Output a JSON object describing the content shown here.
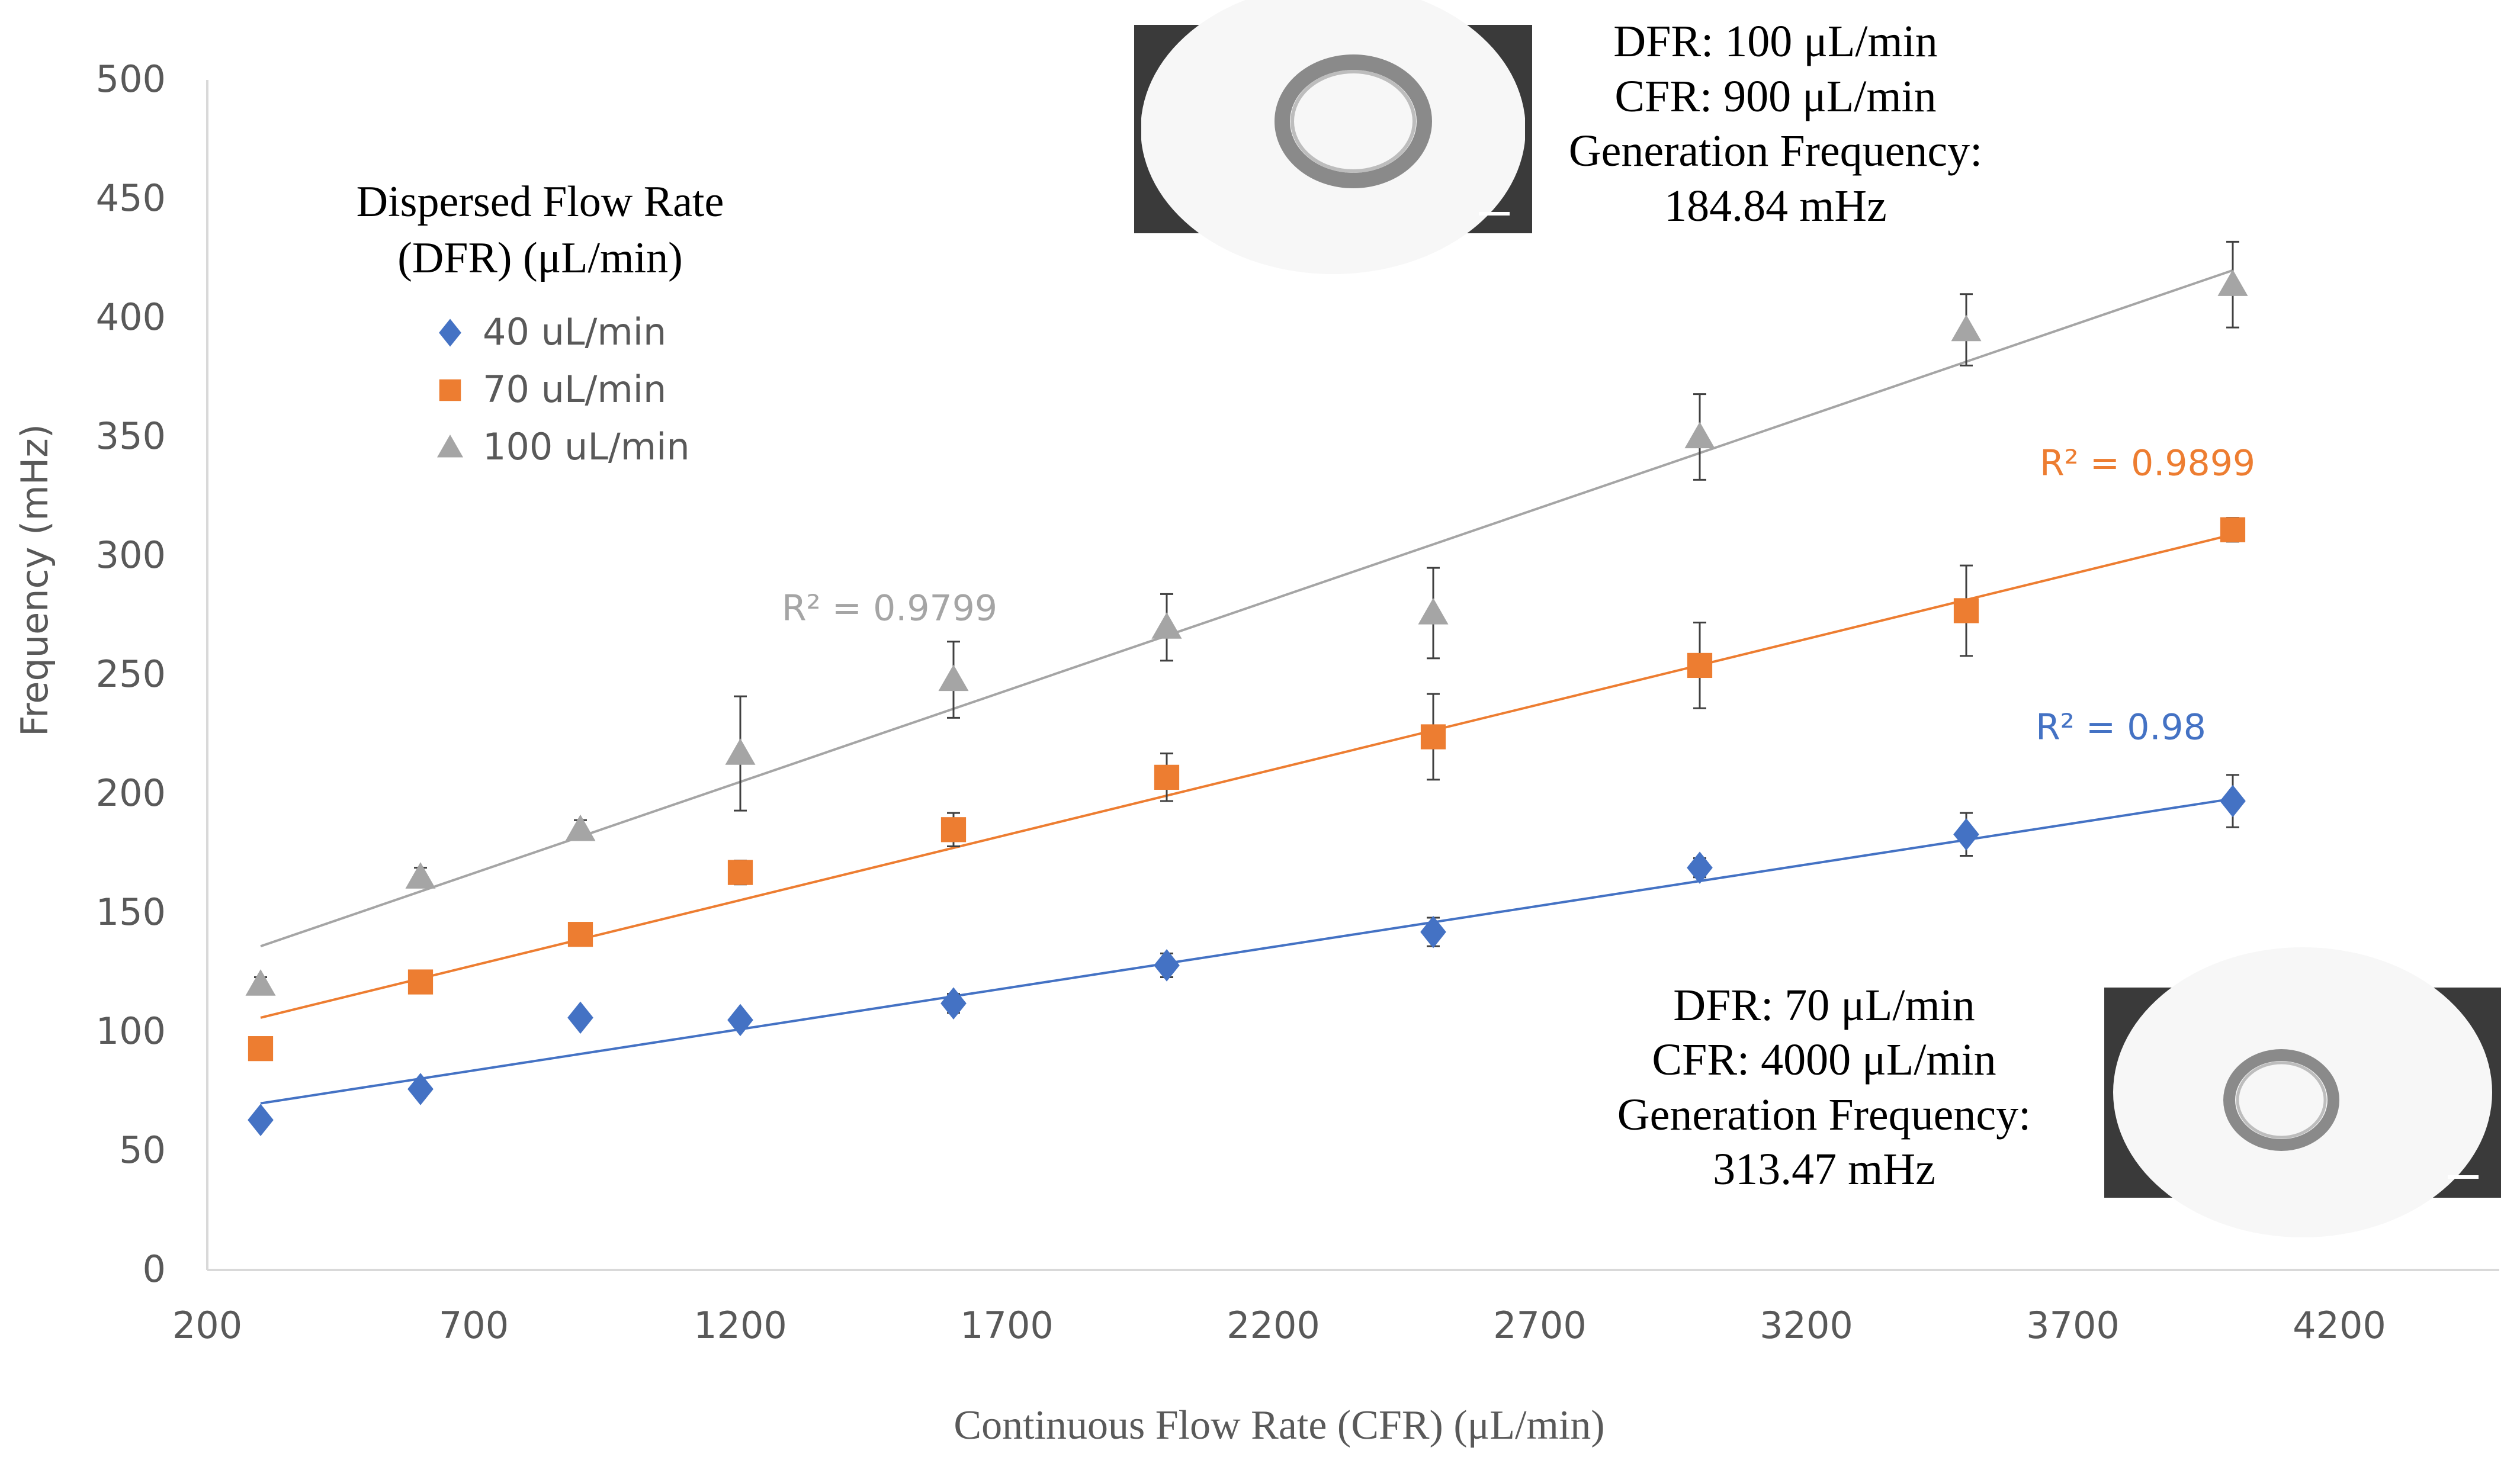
{
  "chart_data": {
    "type": "scatter",
    "xlabel": "Continuous Flow Rate (CFR) (μL/min)",
    "ylabel": "Frequency (mHz)",
    "xlim": [
      200,
      4500
    ],
    "ylim": [
      0,
      500
    ],
    "x_ticks": [
      200,
      700,
      1200,
      1700,
      2200,
      2700,
      3200,
      3700,
      4200
    ],
    "y_ticks": [
      0,
      50,
      100,
      150,
      200,
      250,
      300,
      350,
      400,
      450,
      500
    ],
    "grid": false,
    "legend": {
      "title_line1": "Dispersed Flow Rate",
      "title_line2": "(DFR) (μL/min)",
      "position": "top-left"
    },
    "series": [
      {
        "name": "40 uL/min",
        "color": "#4472C4",
        "marker": "diamond",
        "x": [
          300,
          600,
          900,
          1200,
          1600,
          2000,
          2500,
          3000,
          3500,
          4000
        ],
        "y": [
          63,
          76,
          106,
          105,
          112,
          128,
          142,
          169,
          183,
          197
        ],
        "err": [
          2,
          2,
          2,
          3,
          4,
          5,
          6,
          4,
          9,
          11
        ],
        "trend": {
          "x1": 300,
          "y1": 70,
          "x2": 4000,
          "y2": 198
        },
        "r2_label": "R² = 0.98",
        "r2_anchor": {
          "x": 3790,
          "y": 223
        }
      },
      {
        "name": "70 uL/min",
        "color": "#ED7D31",
        "marker": "square",
        "x": [
          300,
          600,
          900,
          1200,
          1600,
          2000,
          2500,
          3000,
          3500,
          4000
        ],
        "y": [
          93,
          121,
          141,
          167,
          185,
          207,
          224,
          254,
          277,
          311
        ],
        "err": [
          2,
          3,
          2,
          5,
          7,
          10,
          18,
          18,
          19,
          5
        ],
        "trend": {
          "x1": 300,
          "y1": 106,
          "x2": 4000,
          "y2": 309
        },
        "r2_label": "R² = 0.9899",
        "r2_anchor": {
          "x": 3840,
          "y": 334
        }
      },
      {
        "name": "100 uL/min",
        "color": "#A5A5A5",
        "marker": "triangle",
        "x": [
          300,
          600,
          900,
          1200,
          1600,
          2000,
          2500,
          3000,
          3500,
          4000
        ],
        "y": [
          120,
          165,
          185,
          217,
          248,
          270,
          276,
          350,
          395,
          414
        ],
        "err": [
          3,
          4,
          4,
          24,
          16,
          14,
          19,
          18,
          15,
          18
        ],
        "trend": {
          "x1": 300,
          "y1": 136,
          "x2": 4000,
          "y2": 420
        },
        "r2_label": "R² = 0.9799",
        "r2_anchor": {
          "x": 1480,
          "y": 273
        }
      }
    ]
  },
  "annotations": {
    "top": {
      "line1": "DFR: 100 μL/min",
      "line2": "CFR: 900 μL/min",
      "line3": "Generation Frequency:",
      "line4": "184.84 mHz"
    },
    "bottom": {
      "line1": "DFR: 70 μL/min",
      "line2": "CFR: 4000 μL/min",
      "line3": "Generation Frequency:",
      "line4": "313.47 mHz"
    }
  }
}
